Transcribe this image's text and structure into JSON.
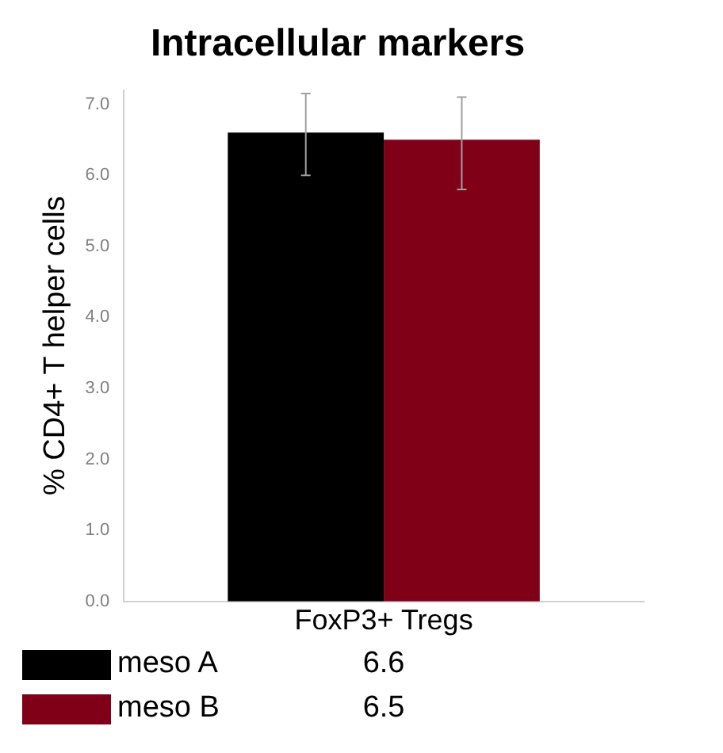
{
  "chart_data": {
    "type": "bar",
    "title": "Intracellular markers",
    "ylabel": "% CD4+ T helper cells",
    "categories": [
      "FoxP3+ Tregs"
    ],
    "series": [
      {
        "name": "meso A",
        "color": "#000000",
        "values": [
          6.6
        ],
        "value_labels": [
          "6.6"
        ],
        "errors": [
          [
            6.0,
            7.15
          ]
        ]
      },
      {
        "name": "meso B",
        "color": "#800017",
        "values": [
          6.5
        ],
        "value_labels": [
          "6.5"
        ],
        "errors": [
          [
            5.8,
            7.1
          ]
        ]
      }
    ],
    "ylim": [
      0,
      7.2
    ],
    "yticks": [
      {
        "value": 0,
        "label": "0.0"
      },
      {
        "value": 1,
        "label": "1.0"
      },
      {
        "value": 2,
        "label": "2.0"
      },
      {
        "value": 3,
        "label": "3.0"
      },
      {
        "value": 4,
        "label": "4.0"
      },
      {
        "value": 5,
        "label": "5.0"
      },
      {
        "value": 6,
        "label": "6.0"
      },
      {
        "value": 7,
        "label": "7.0"
      }
    ],
    "grid": false,
    "legend": "bottom"
  }
}
